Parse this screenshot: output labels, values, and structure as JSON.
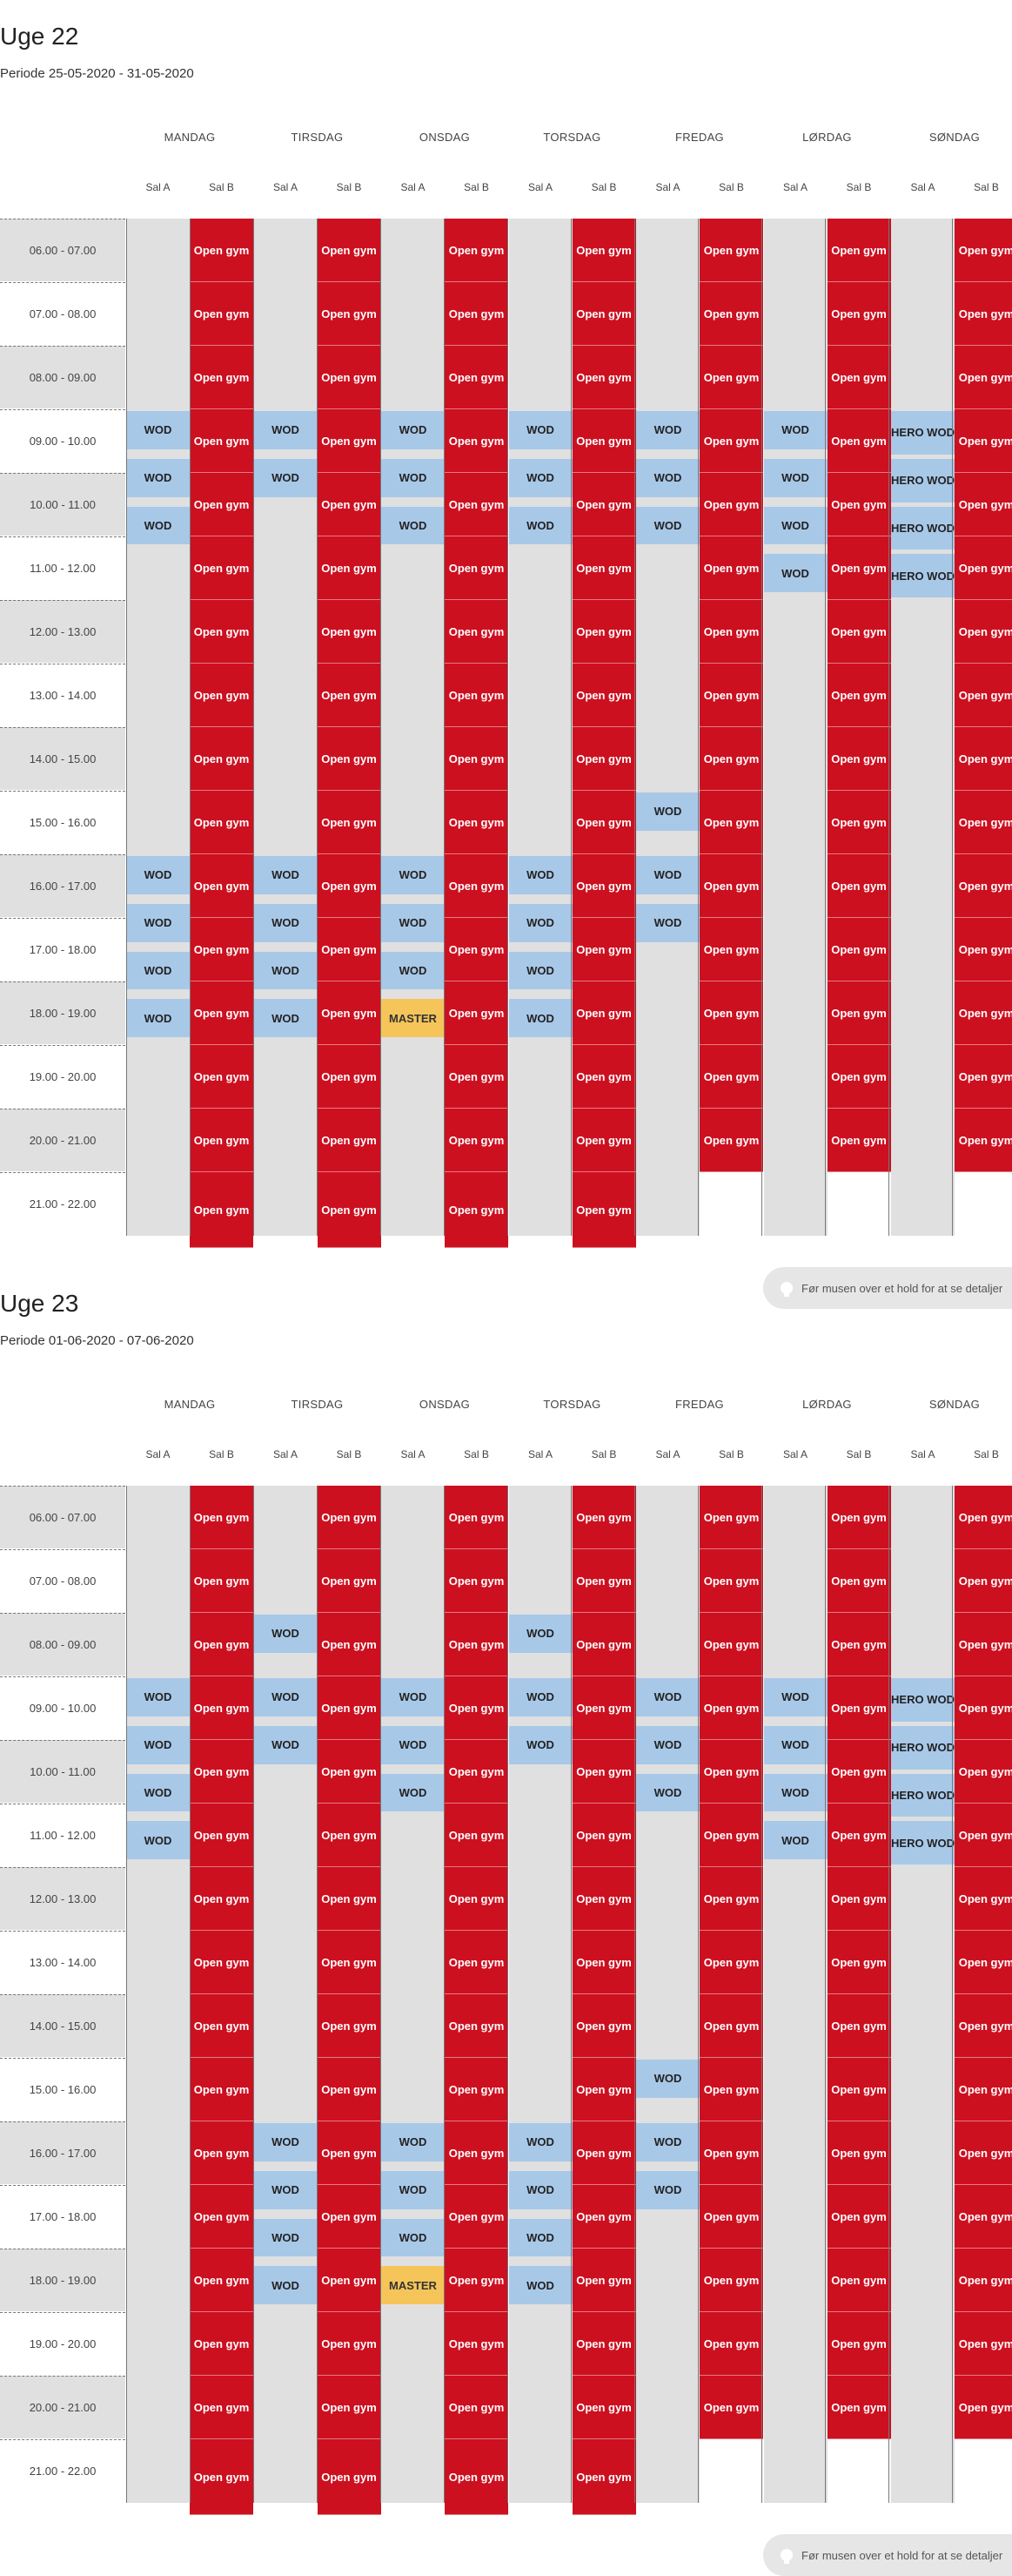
{
  "weeks": [
    {
      "title": "Uge 22",
      "period": "Periode 25-05-2020 - 31-05-2020",
      "open_gym_end": [
        21,
        21,
        21,
        21,
        20,
        20,
        20
      ],
      "events": [
        {
          "day": 0,
          "label": "WOD",
          "start": 9,
          "dur": 0.6,
          "color": "blue"
        },
        {
          "day": 0,
          "label": "WOD",
          "start": 9.75,
          "dur": 0.6,
          "color": "blue"
        },
        {
          "day": 0,
          "label": "WOD",
          "start": 10.5,
          "dur": 0.6,
          "color": "blue"
        },
        {
          "day": 0,
          "label": "WOD",
          "start": 16,
          "dur": 0.6,
          "color": "blue"
        },
        {
          "day": 0,
          "label": "WOD",
          "start": 16.75,
          "dur": 0.6,
          "color": "blue"
        },
        {
          "day": 0,
          "label": "WOD",
          "start": 17.5,
          "dur": 0.6,
          "color": "blue"
        },
        {
          "day": 0,
          "label": "WOD",
          "start": 18.25,
          "dur": 0.6,
          "color": "blue"
        },
        {
          "day": 1,
          "label": "WOD",
          "start": 9,
          "dur": 0.6,
          "color": "blue"
        },
        {
          "day": 1,
          "label": "WOD",
          "start": 9.75,
          "dur": 0.6,
          "color": "blue"
        },
        {
          "day": 1,
          "label": "WOD",
          "start": 16,
          "dur": 0.6,
          "color": "blue"
        },
        {
          "day": 1,
          "label": "WOD",
          "start": 16.75,
          "dur": 0.6,
          "color": "blue"
        },
        {
          "day": 1,
          "label": "WOD",
          "start": 17.5,
          "dur": 0.6,
          "color": "blue"
        },
        {
          "day": 1,
          "label": "WOD",
          "start": 18.25,
          "dur": 0.6,
          "color": "blue"
        },
        {
          "day": 2,
          "label": "WOD",
          "start": 9,
          "dur": 0.6,
          "color": "blue"
        },
        {
          "day": 2,
          "label": "WOD",
          "start": 9.75,
          "dur": 0.6,
          "color": "blue"
        },
        {
          "day": 2,
          "label": "WOD",
          "start": 10.5,
          "dur": 0.6,
          "color": "blue"
        },
        {
          "day": 2,
          "label": "WOD",
          "start": 16,
          "dur": 0.6,
          "color": "blue"
        },
        {
          "day": 2,
          "label": "WOD",
          "start": 16.75,
          "dur": 0.6,
          "color": "blue"
        },
        {
          "day": 2,
          "label": "WOD",
          "start": 17.5,
          "dur": 0.6,
          "color": "blue"
        },
        {
          "day": 2,
          "label": "MASTER",
          "start": 18.25,
          "dur": 0.6,
          "color": "yellow"
        },
        {
          "day": 3,
          "label": "WOD",
          "start": 9,
          "dur": 0.6,
          "color": "blue"
        },
        {
          "day": 3,
          "label": "WOD",
          "start": 9.75,
          "dur": 0.6,
          "color": "blue"
        },
        {
          "day": 3,
          "label": "WOD",
          "start": 10.5,
          "dur": 0.6,
          "color": "blue"
        },
        {
          "day": 3,
          "label": "WOD",
          "start": 16,
          "dur": 0.6,
          "color": "blue"
        },
        {
          "day": 3,
          "label": "WOD",
          "start": 16.75,
          "dur": 0.6,
          "color": "blue"
        },
        {
          "day": 3,
          "label": "WOD",
          "start": 17.5,
          "dur": 0.6,
          "color": "blue"
        },
        {
          "day": 3,
          "label": "WOD",
          "start": 18.25,
          "dur": 0.6,
          "color": "blue"
        },
        {
          "day": 4,
          "label": "WOD",
          "start": 9,
          "dur": 0.6,
          "color": "blue"
        },
        {
          "day": 4,
          "label": "WOD",
          "start": 9.75,
          "dur": 0.6,
          "color": "blue"
        },
        {
          "day": 4,
          "label": "WOD",
          "start": 10.5,
          "dur": 0.6,
          "color": "blue"
        },
        {
          "day": 4,
          "label": "WOD",
          "start": 15,
          "dur": 0.6,
          "color": "blue"
        },
        {
          "day": 4,
          "label": "WOD",
          "start": 16,
          "dur": 0.6,
          "color": "blue"
        },
        {
          "day": 4,
          "label": "WOD",
          "start": 16.75,
          "dur": 0.6,
          "color": "blue"
        },
        {
          "day": 5,
          "label": "WOD",
          "start": 9,
          "dur": 0.6,
          "color": "blue"
        },
        {
          "day": 5,
          "label": "WOD",
          "start": 9.75,
          "dur": 0.6,
          "color": "blue"
        },
        {
          "day": 5,
          "label": "WOD",
          "start": 10.5,
          "dur": 0.6,
          "color": "blue"
        },
        {
          "day": 5,
          "label": "WOD",
          "start": 11.25,
          "dur": 0.6,
          "color": "blue"
        },
        {
          "day": 6,
          "label": "HERO WOD",
          "start": 9,
          "dur": 0.6,
          "color": "blue"
        },
        {
          "day": 6,
          "label": "HERO WOD",
          "start": 9.75,
          "dur": 0.6,
          "color": "blue"
        },
        {
          "day": 6,
          "label": "HERO WOD",
          "start": 10.5,
          "dur": 0.6,
          "color": "blue"
        },
        {
          "day": 6,
          "label": "HERO WOD",
          "start": 11.25,
          "dur": 0.6,
          "color": "blue"
        }
      ]
    },
    {
      "title": "Uge 23",
      "period": "Periode 01-06-2020 - 07-06-2020",
      "open_gym_end": [
        21,
        21,
        21,
        21,
        20,
        20,
        20
      ],
      "events": [
        {
          "day": 0,
          "label": "WOD",
          "start": 9,
          "dur": 0.6,
          "color": "blue"
        },
        {
          "day": 0,
          "label": "WOD",
          "start": 9.75,
          "dur": 0.6,
          "color": "blue"
        },
        {
          "day": 0,
          "label": "WOD",
          "start": 10.5,
          "dur": 0.6,
          "color": "blue"
        },
        {
          "day": 0,
          "label": "WOD",
          "start": 11.25,
          "dur": 0.6,
          "color": "blue"
        },
        {
          "day": 1,
          "label": "WOD",
          "start": 8,
          "dur": 0.6,
          "color": "blue"
        },
        {
          "day": 1,
          "label": "WOD",
          "start": 9,
          "dur": 0.6,
          "color": "blue"
        },
        {
          "day": 1,
          "label": "WOD",
          "start": 9.75,
          "dur": 0.6,
          "color": "blue"
        },
        {
          "day": 1,
          "label": "WOD",
          "start": 16,
          "dur": 0.6,
          "color": "blue"
        },
        {
          "day": 1,
          "label": "WOD",
          "start": 16.75,
          "dur": 0.6,
          "color": "blue"
        },
        {
          "day": 1,
          "label": "WOD",
          "start": 17.5,
          "dur": 0.6,
          "color": "blue"
        },
        {
          "day": 1,
          "label": "WOD",
          "start": 18.25,
          "dur": 0.6,
          "color": "blue"
        },
        {
          "day": 2,
          "label": "WOD",
          "start": 9,
          "dur": 0.6,
          "color": "blue"
        },
        {
          "day": 2,
          "label": "WOD",
          "start": 9.75,
          "dur": 0.6,
          "color": "blue"
        },
        {
          "day": 2,
          "label": "WOD",
          "start": 10.5,
          "dur": 0.6,
          "color": "blue"
        },
        {
          "day": 2,
          "label": "WOD",
          "start": 16,
          "dur": 0.6,
          "color": "blue"
        },
        {
          "day": 2,
          "label": "WOD",
          "start": 16.75,
          "dur": 0.6,
          "color": "blue"
        },
        {
          "day": 2,
          "label": "WOD",
          "start": 17.5,
          "dur": 0.6,
          "color": "blue"
        },
        {
          "day": 2,
          "label": "MASTER",
          "start": 18.25,
          "dur": 0.6,
          "color": "yellow"
        },
        {
          "day": 3,
          "label": "WOD",
          "start": 8,
          "dur": 0.6,
          "color": "blue"
        },
        {
          "day": 3,
          "label": "WOD",
          "start": 9,
          "dur": 0.6,
          "color": "blue"
        },
        {
          "day": 3,
          "label": "WOD",
          "start": 9.75,
          "dur": 0.6,
          "color": "blue"
        },
        {
          "day": 3,
          "label": "WOD",
          "start": 16,
          "dur": 0.6,
          "color": "blue"
        },
        {
          "day": 3,
          "label": "WOD",
          "start": 16.75,
          "dur": 0.6,
          "color": "blue"
        },
        {
          "day": 3,
          "label": "WOD",
          "start": 17.5,
          "dur": 0.6,
          "color": "blue"
        },
        {
          "day": 3,
          "label": "WOD",
          "start": 18.25,
          "dur": 0.6,
          "color": "blue"
        },
        {
          "day": 4,
          "label": "WOD",
          "start": 9,
          "dur": 0.6,
          "color": "blue"
        },
        {
          "day": 4,
          "label": "WOD",
          "start": 9.75,
          "dur": 0.6,
          "color": "blue"
        },
        {
          "day": 4,
          "label": "WOD",
          "start": 10.5,
          "dur": 0.6,
          "color": "blue"
        },
        {
          "day": 4,
          "label": "WOD",
          "start": 15,
          "dur": 0.6,
          "color": "blue"
        },
        {
          "day": 4,
          "label": "WOD",
          "start": 16,
          "dur": 0.6,
          "color": "blue"
        },
        {
          "day": 4,
          "label": "WOD",
          "start": 16.75,
          "dur": 0.6,
          "color": "blue"
        },
        {
          "day": 5,
          "label": "WOD",
          "start": 9,
          "dur": 0.6,
          "color": "blue"
        },
        {
          "day": 5,
          "label": "WOD",
          "start": 9.75,
          "dur": 0.6,
          "color": "blue"
        },
        {
          "day": 5,
          "label": "WOD",
          "start": 10.5,
          "dur": 0.6,
          "color": "blue"
        },
        {
          "day": 5,
          "label": "WOD",
          "start": 11.25,
          "dur": 0.6,
          "color": "blue"
        },
        {
          "day": 6,
          "label": "HERO WOD",
          "start": 9,
          "dur": 0.6,
          "color": "blue"
        },
        {
          "day": 6,
          "label": "HERO WOD",
          "start": 9.75,
          "dur": 0.6,
          "color": "blue"
        },
        {
          "day": 6,
          "label": "HERO WOD",
          "start": 10.5,
          "dur": 0.6,
          "color": "blue"
        },
        {
          "day": 6,
          "label": "HERO WOD",
          "start": 11.25,
          "dur": 0.6,
          "color": "blue"
        }
      ]
    }
  ],
  "days": [
    "MANDAG",
    "TIRSDAG",
    "ONSDAG",
    "TORSDAG",
    "FREDAG",
    "LØRDAG",
    "SØNDAG"
  ],
  "halls": [
    "Sal A",
    "Sal B"
  ],
  "time_slots": [
    "06.00 - 07.00",
    "07.00 - 08.00",
    "08.00 - 09.00",
    "09.00 - 10.00",
    "10.00 - 11.00",
    "11.00 - 12.00",
    "12.00 - 13.00",
    "13.00 - 14.00",
    "14.00 - 15.00",
    "15.00 - 16.00",
    "16.00 - 17.00",
    "17.00 - 18.00",
    "18.00 - 19.00",
    "19.00 - 20.00",
    "20.00 - 21.00",
    "21.00 - 22.00"
  ],
  "open_gym_label": "Open gym",
  "schedule_start_hour": 6,
  "hint_text": "Før musen over et hold for at se detaljer",
  "hint_icon": "lightbulb-icon",
  "colors": {
    "open_gym": "#cc1020",
    "wod": "#a8c8e8",
    "master": "#f5c55a",
    "sal_a_bg": "#e0e0e0"
  }
}
